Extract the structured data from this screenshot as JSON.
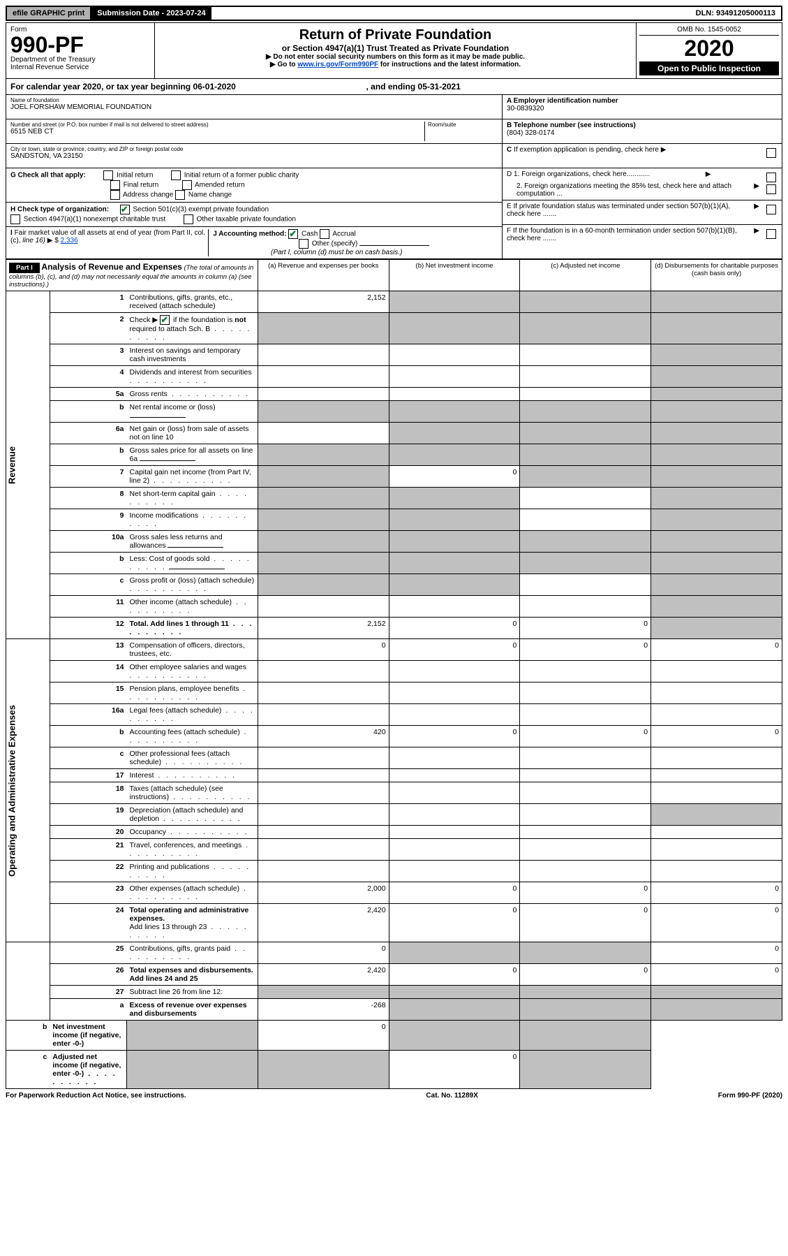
{
  "top": {
    "efile": "efile GRAPHIC print",
    "submission_label": "Submission Date - 2023-07-24",
    "dln": "DLN: 93491205000113"
  },
  "header": {
    "form_word": "Form",
    "form_no": "990-PF",
    "dept": "Department of the Treasury",
    "irs": "Internal Revenue Service",
    "title": "Return of Private Foundation",
    "subtitle": "or Section 4947(a)(1) Trust Treated as Private Foundation",
    "inst1": "▶ Do not enter social security numbers on this form as it may be made public.",
    "inst2_pre": "▶ Go to ",
    "inst2_link": "www.irs.gov/Form990PF",
    "inst2_post": " for instructions and the latest information.",
    "omb": "OMB No. 1545-0052",
    "year": "2020",
    "open": "Open to Public Inspection"
  },
  "cal_year": {
    "text_pre": "For calendar year 2020, or tax year beginning 06-01-2020",
    "text_mid": ", and ending 05-31-2021"
  },
  "entity": {
    "name_label": "Name of foundation",
    "name": "JOEL FORSHAW MEMORIAL FOUNDATION",
    "addr_label": "Number and street (or P.O. box number if mail is not delivered to street address)",
    "addr": "6515 NEB CT",
    "room_label": "Room/suite",
    "city_label": "City or town, state or province, country, and ZIP or foreign postal code",
    "city": "SANDSTON, VA  23150",
    "ein_label": "A Employer identification number",
    "ein": "30-0839320",
    "phone_label": "B Telephone number (see instructions)",
    "phone": "(804) 328-0174",
    "c_label": "C If exemption application is pending, check here"
  },
  "g": {
    "label": "G Check all that apply:",
    "initial": "Initial return",
    "initial_former": "Initial return of a former public charity",
    "final": "Final return",
    "amended": "Amended return",
    "addr_change": "Address change",
    "name_change": "Name change"
  },
  "h": {
    "label": "H Check type of organization:",
    "c3": "Section 501(c)(3) exempt private foundation",
    "nonexempt": "Section 4947(a)(1) nonexempt charitable trust",
    "other_taxable": "Other taxable private foundation"
  },
  "i": {
    "label": "I Fair market value of all assets at end of year (from Part II, col. (c), line 16)",
    "value": "2,336"
  },
  "j": {
    "label": "J Accounting method:",
    "cash": "Cash",
    "accrual": "Accrual",
    "other": "Other (specify)",
    "note": "(Part I, column (d) must be on cash basis.)"
  },
  "right_boxes": {
    "d1": "D 1. Foreign organizations, check here............",
    "d2": "2. Foreign organizations meeting the 85% test, check here and attach computation ...",
    "e": "E  If private foundation status was terminated under section 507(b)(1)(A), check here .......",
    "f": "F  If the foundation is in a 60-month termination under section 507(b)(1)(B), check here ......."
  },
  "part1": {
    "label": "Part I",
    "title": "Analysis of Revenue and Expenses",
    "note": "(The total of amounts in columns (b), (c), and (d) may not necessarily equal the amounts in column (a) (see instructions).)",
    "col_a": "(a)  Revenue and expenses per books",
    "col_b": "(b)  Net investment income",
    "col_c": "(c)  Adjusted net income",
    "col_d": "(d)  Disbursements for charitable purposes (cash basis only)"
  },
  "sections": {
    "revenue": "Revenue",
    "expenses": "Operating and Administrative Expenses"
  },
  "rows": [
    {
      "n": "1",
      "d": "Contributions, gifts, grants, etc., received (attach schedule)",
      "a": "2,152",
      "b": "g",
      "c": "g",
      "dd": "g"
    },
    {
      "n": "2",
      "d": "Check ▶ ☑ if the foundation is not required to attach Sch. B",
      "dots": true,
      "a": "g",
      "b": "g",
      "c": "g",
      "dd": "g"
    },
    {
      "n": "3",
      "d": "Interest on savings and temporary cash investments",
      "a": "",
      "b": "",
      "c": "",
      "dd": "g"
    },
    {
      "n": "4",
      "d": "Dividends and interest from securities",
      "dots": true,
      "a": "",
      "b": "",
      "c": "",
      "dd": "g"
    },
    {
      "n": "5a",
      "d": "Gross rents",
      "dots": true,
      "a": "",
      "b": "",
      "c": "",
      "dd": "g"
    },
    {
      "n": "b",
      "d": "Net rental income or (loss)",
      "inline_box": true,
      "a": "g",
      "b": "g",
      "c": "g",
      "dd": "g"
    },
    {
      "n": "6a",
      "d": "Net gain or (loss) from sale of assets not on line 10",
      "a": "",
      "b": "g",
      "c": "g",
      "dd": "g"
    },
    {
      "n": "b",
      "d": "Gross sales price for all assets on line 6a",
      "inline_box": true,
      "a": "g",
      "b": "g",
      "c": "g",
      "dd": "g"
    },
    {
      "n": "7",
      "d": "Capital gain net income (from Part IV, line 2)",
      "dots": true,
      "a": "g",
      "b": "0",
      "c": "g",
      "dd": "g"
    },
    {
      "n": "8",
      "d": "Net short-term capital gain",
      "dots": true,
      "a": "g",
      "b": "g",
      "c": "",
      "dd": "g"
    },
    {
      "n": "9",
      "d": "Income modifications",
      "dots": true,
      "a": "g",
      "b": "g",
      "c": "",
      "dd": "g"
    },
    {
      "n": "10a",
      "d": "Gross sales less returns and allowances",
      "inline_box": true,
      "a": "g",
      "b": "g",
      "c": "g",
      "dd": "g"
    },
    {
      "n": "b",
      "d": "Less: Cost of goods sold",
      "dots": true,
      "inline_box": true,
      "a": "g",
      "b": "g",
      "c": "g",
      "dd": "g"
    },
    {
      "n": "c",
      "d": "Gross profit or (loss) (attach schedule)",
      "dots": true,
      "a": "g",
      "b": "g",
      "c": "",
      "dd": "g"
    },
    {
      "n": "11",
      "d": "Other income (attach schedule)",
      "dots": true,
      "a": "",
      "b": "",
      "c": "",
      "dd": "g"
    },
    {
      "n": "12",
      "d": "Total. Add lines 1 through 11",
      "dots": true,
      "bold": true,
      "a": "2,152",
      "b": "0",
      "c": "0",
      "dd": "g"
    },
    {
      "n": "13",
      "d": "Compensation of officers, directors, trustees, etc.",
      "a": "0",
      "b": "0",
      "c": "0",
      "dd": "0"
    },
    {
      "n": "14",
      "d": "Other employee salaries and wages",
      "dots": true,
      "a": "",
      "b": "",
      "c": "",
      "dd": ""
    },
    {
      "n": "15",
      "d": "Pension plans, employee benefits",
      "dots": true,
      "a": "",
      "b": "",
      "c": "",
      "dd": ""
    },
    {
      "n": "16a",
      "d": "Legal fees (attach schedule)",
      "dots": true,
      "a": "",
      "b": "",
      "c": "",
      "dd": ""
    },
    {
      "n": "b",
      "d": "Accounting fees (attach schedule)",
      "dots": true,
      "a": "420",
      "b": "0",
      "c": "0",
      "dd": "0"
    },
    {
      "n": "c",
      "d": "Other professional fees (attach schedule)",
      "dots": true,
      "a": "",
      "b": "",
      "c": "",
      "dd": ""
    },
    {
      "n": "17",
      "d": "Interest",
      "dots": true,
      "a": "",
      "b": "",
      "c": "",
      "dd": ""
    },
    {
      "n": "18",
      "d": "Taxes (attach schedule) (see instructions)",
      "dots": true,
      "a": "",
      "b": "",
      "c": "",
      "dd": ""
    },
    {
      "n": "19",
      "d": "Depreciation (attach schedule) and depletion",
      "dots": true,
      "a": "",
      "b": "",
      "c": "",
      "dd": "g"
    },
    {
      "n": "20",
      "d": "Occupancy",
      "dots": true,
      "a": "",
      "b": "",
      "c": "",
      "dd": ""
    },
    {
      "n": "21",
      "d": "Travel, conferences, and meetings",
      "dots": true,
      "a": "",
      "b": "",
      "c": "",
      "dd": ""
    },
    {
      "n": "22",
      "d": "Printing and publications",
      "dots": true,
      "a": "",
      "b": "",
      "c": "",
      "dd": ""
    },
    {
      "n": "23",
      "d": "Other expenses (attach schedule)",
      "dots": true,
      "a": "2,000",
      "b": "0",
      "c": "0",
      "dd": "0"
    },
    {
      "n": "24",
      "d": "Total operating and administrative expenses. Add lines 13 through 23",
      "dots": true,
      "bold_first": true,
      "a": "2,420",
      "b": "0",
      "c": "0",
      "dd": "0"
    },
    {
      "n": "25",
      "d": "Contributions, gifts, grants paid",
      "dots": true,
      "a": "0",
      "b": "g",
      "c": "g",
      "dd": "0"
    },
    {
      "n": "26",
      "d": "Total expenses and disbursements. Add lines 24 and 25",
      "bold": true,
      "a": "2,420",
      "b": "0",
      "c": "0",
      "dd": "0"
    },
    {
      "n": "27",
      "d": "Subtract line 26 from line 12:",
      "a": "g",
      "b": "g",
      "c": "g",
      "dd": "g"
    },
    {
      "n": "a",
      "d": "Excess of revenue over expenses and disbursements",
      "bold": true,
      "a": "-268",
      "b": "g",
      "c": "g",
      "dd": "g"
    },
    {
      "n": "b",
      "d": "Net investment income (if negative, enter -0-)",
      "bold": true,
      "a": "g",
      "b": "0",
      "c": "g",
      "dd": "g"
    },
    {
      "n": "c",
      "d": "Adjusted net income (if negative, enter -0-)",
      "bold": true,
      "dots": true,
      "a": "g",
      "b": "g",
      "c": "0",
      "dd": "g"
    }
  ],
  "footer": {
    "left": "For Paperwork Reduction Act Notice, see instructions.",
    "mid": "Cat. No. 11289X",
    "right": "Form 990-PF (2020)"
  }
}
